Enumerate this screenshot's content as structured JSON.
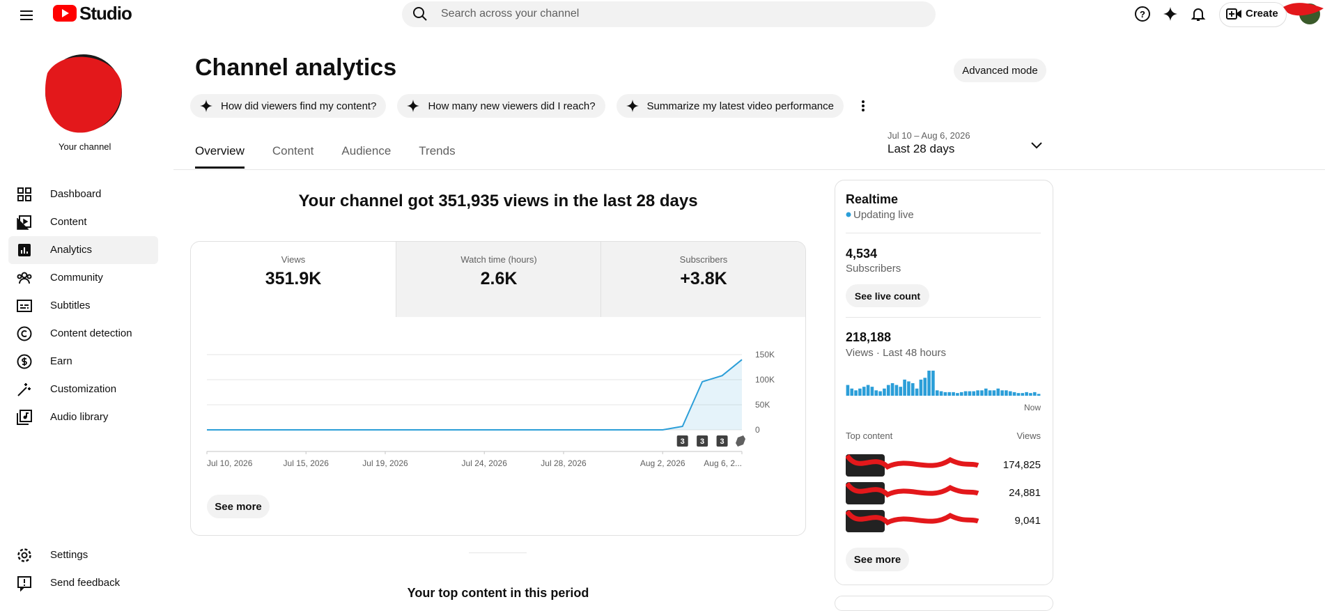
{
  "header": {
    "logo": "Studio",
    "search_placeholder": "Search across your channel",
    "create": "Create"
  },
  "sidebar": {
    "channel_label": "Your channel",
    "active": "Analytics",
    "nav": [
      "Dashboard",
      "Content",
      "Analytics",
      "Community",
      "Subtitles",
      "Content detection",
      "Earn",
      "Customization",
      "Audio library"
    ],
    "footer": [
      "Settings",
      "Send feedback"
    ]
  },
  "page": {
    "title": "Channel analytics",
    "advanced": "Advanced mode",
    "prompts": [
      "How did viewers find my content?",
      "How many new viewers did I reach?",
      "Summarize my latest video performance"
    ],
    "tabs": [
      "Overview",
      "Content",
      "Audience",
      "Trends"
    ],
    "active_tab": "Overview",
    "date_range": "Jul 10 – Aug 6, 2026",
    "period": "Last 28 days",
    "headline": "Your channel got 351,935 views in the last 28 days",
    "metrics": [
      {
        "label": "Views",
        "value": "351.9K"
      },
      {
        "label": "Watch time (hours)",
        "value": "2.6K"
      },
      {
        "label": "Subscribers",
        "value": "+3.8K"
      }
    ],
    "see_more": "See more",
    "top_content_heading": "Your top content in this period"
  },
  "realtime": {
    "title": "Realtime",
    "status": "Updating live",
    "subscribers": "4,534",
    "subscribers_label": "Subscribers",
    "live_count": "See live count",
    "views": "218,188",
    "views_label": "Views · Last 48 hours",
    "top_content": "Top content",
    "views_col": "Views",
    "top_values": [
      "174,825",
      "24,881",
      "9,041"
    ],
    "see_more": "See more"
  },
  "chart_data": [
    {
      "type": "line",
      "color": "#2b9ed8",
      "grid": true,
      "x": [
        "2026-07-10",
        "2026-07-11",
        "2026-07-12",
        "2026-07-13",
        "2026-07-14",
        "2026-07-15",
        "2026-07-16",
        "2026-07-17",
        "2026-07-18",
        "2026-07-19",
        "2026-07-20",
        "2026-07-21",
        "2026-07-22",
        "2026-07-23",
        "2026-07-24",
        "2026-07-25",
        "2026-07-26",
        "2026-07-27",
        "2026-07-28",
        "2026-07-29",
        "2026-07-30",
        "2026-07-31",
        "2026-08-01",
        "2026-08-02",
        "2026-08-03",
        "2026-08-04",
        "2026-08-05",
        "2026-08-06"
      ],
      "values": [
        0,
        0,
        0,
        0,
        0,
        0,
        0,
        0,
        0,
        0,
        0,
        0,
        0,
        0,
        0,
        0,
        0,
        0,
        0,
        0,
        0,
        0,
        0,
        0,
        7000,
        96000,
        108000,
        140000
      ],
      "ylim": [
        0,
        150000
      ],
      "yticks": [
        0,
        {
          "value": 50000,
          "label": "50K"
        },
        {
          "value": 100000,
          "label": "100K"
        },
        {
          "value": 150000,
          "label": "150K"
        }
      ],
      "xticks": [
        {
          "value": "2026-07-10",
          "label": "Jul 10, 2026"
        },
        {
          "value": "2026-07-15",
          "label": "Jul 15, 2026"
        },
        {
          "value": "2026-07-19",
          "label": "Jul 19, 2026"
        },
        {
          "value": "2026-07-24",
          "label": "Jul 24, 2026"
        },
        {
          "value": "2026-07-28",
          "label": "Jul 28, 2026"
        },
        {
          "value": "2026-08-02",
          "label": "Aug 2, 2026"
        },
        {
          "value": "2026-08-06",
          "label": "Aug 6, 2..."
        }
      ],
      "annotations": [
        {
          "x": "2026-08-03",
          "label": "3"
        },
        {
          "x": "2026-08-04",
          "label": "3"
        },
        {
          "x": "2026-08-05",
          "label": "3"
        }
      ]
    },
    {
      "type": "bar",
      "color": "#2b9ed8",
      "categories": [
        null,
        null,
        null,
        null,
        null,
        null,
        null,
        null,
        null,
        null,
        null,
        null,
        null,
        null,
        null,
        null,
        null,
        null,
        null,
        null,
        null,
        null,
        null,
        null,
        null,
        null,
        null,
        null,
        null,
        null,
        null,
        null,
        null,
        null,
        null,
        null,
        null,
        null,
        null,
        null,
        null,
        null,
        null,
        null,
        null,
        null,
        null,
        "Now"
      ],
      "values": [
        6000,
        4000,
        3000,
        4000,
        5000,
        6000,
        5000,
        3000,
        2500,
        4000,
        6000,
        7000,
        6000,
        5000,
        9000,
        8000,
        7000,
        4000,
        9000,
        10000,
        14000,
        14000,
        3000,
        2500,
        2000,
        2000,
        2000,
        1500,
        2000,
        2500,
        2500,
        2500,
        3000,
        3000,
        4000,
        3000,
        3000,
        4000,
        3000,
        3000,
        2500,
        2000,
        1500,
        1500,
        2000,
        1500,
        2000,
        1000
      ]
    }
  ]
}
